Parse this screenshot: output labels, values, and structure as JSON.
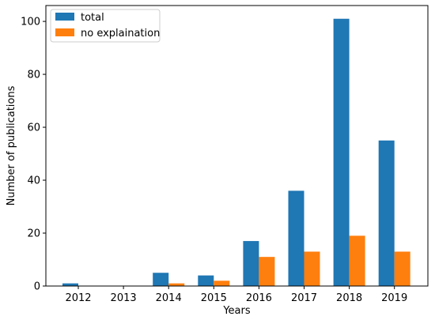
{
  "chart_data": {
    "type": "bar",
    "title": "",
    "xlabel": "Years",
    "ylabel": "Number of publications",
    "categories": [
      "2012",
      "2013",
      "2014",
      "2015",
      "2016",
      "2017",
      "2018",
      "2019"
    ],
    "series": [
      {
        "name": "total",
        "color": "#1f77b4",
        "values": [
          1,
          0,
          5,
          4,
          17,
          36,
          101,
          55
        ]
      },
      {
        "name": "no explaination",
        "color": "#ff7f0e",
        "values": [
          0,
          0,
          1,
          2,
          11,
          13,
          19,
          13
        ]
      }
    ],
    "ylim": [
      0,
      106
    ],
    "yticks": [
      0,
      20,
      40,
      60,
      80,
      100
    ],
    "grid": false,
    "legend_position": "top-left"
  }
}
